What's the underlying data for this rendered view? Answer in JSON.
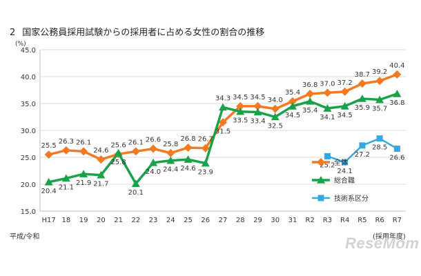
{
  "page": {
    "title_number": "2",
    "title_text": "国家公務員採用試験からの採用者に占める女性の割合の推移",
    "era_note": "平成/令和",
    "year_note": "(採用年度)",
    "watermark": "ReseMom"
  },
  "chart_data": {
    "type": "line",
    "title": "",
    "ylabel": "(%)",
    "xlabel": "",
    "ylim": [
      15,
      45
    ],
    "yticks": [
      "15.0",
      "20.0",
      "25.0",
      "30.0",
      "35.0",
      "40.0",
      "45.0"
    ],
    "grid": true,
    "legend_position": "right-lower",
    "categories": [
      "H17",
      "18",
      "19",
      "20",
      "21",
      "22",
      "23",
      "24",
      "25",
      "26",
      "27",
      "28",
      "29",
      "30",
      "31",
      "R2",
      "R3",
      "R4",
      "R5",
      "R6",
      "R7"
    ],
    "series": [
      {
        "name": "全体",
        "color": "#f47920",
        "marker": "diamond",
        "values": [
          25.5,
          26.3,
          26.1,
          24.6,
          25.6,
          26.1,
          26.6,
          25.8,
          26.8,
          26.7,
          31.5,
          34.5,
          34.5,
          34.0,
          35.4,
          36.8,
          37.0,
          37.2,
          38.7,
          39.2,
          40.4
        ],
        "labels": [
          "25.5",
          "26.3",
          "26.1",
          "24.6",
          "25.6",
          "26.1",
          "26.6",
          "25.8",
          "26.8",
          "26.7",
          "31.5",
          "34.5",
          "34.5",
          "34.0",
          "35.4",
          "36.8",
          "37.0",
          "37.2",
          "38.7",
          "39.2",
          "40.4"
        ]
      },
      {
        "name": "総合職",
        "color": "#1aa24b",
        "marker": "triangle",
        "values": [
          20.4,
          21.1,
          21.9,
          21.7,
          25.8,
          20.1,
          24.0,
          24.4,
          24.6,
          23.9,
          34.3,
          33.5,
          33.4,
          32.5,
          34.5,
          35.4,
          34.1,
          34.5,
          35.9,
          35.7,
          36.8
        ],
        "labels": [
          "20.4",
          "21.1",
          "21.9",
          "21.7",
          "25.8",
          "20.1",
          "24.0",
          "24.4",
          "24.6",
          "23.9",
          "34.3",
          "33.5",
          "33.4",
          "32.5",
          "34.5",
          "35.4",
          "34.1",
          "34.5",
          "35.9",
          "35.7",
          "36.8"
        ]
      },
      {
        "name": "技術系区分",
        "color": "#33a9df",
        "marker": "square",
        "values": [
          null,
          null,
          null,
          null,
          null,
          null,
          null,
          null,
          null,
          null,
          null,
          null,
          null,
          null,
          null,
          null,
          25.2,
          24.1,
          27.2,
          28.5,
          26.6
        ],
        "labels": [
          "",
          "",
          "",
          "",
          "",
          "",
          "",
          "",
          "",
          "",
          "",
          "",
          "",
          "",
          "",
          "",
          "25.2",
          "24.1",
          "27.2",
          "28.5",
          "26.6"
        ]
      }
    ]
  }
}
